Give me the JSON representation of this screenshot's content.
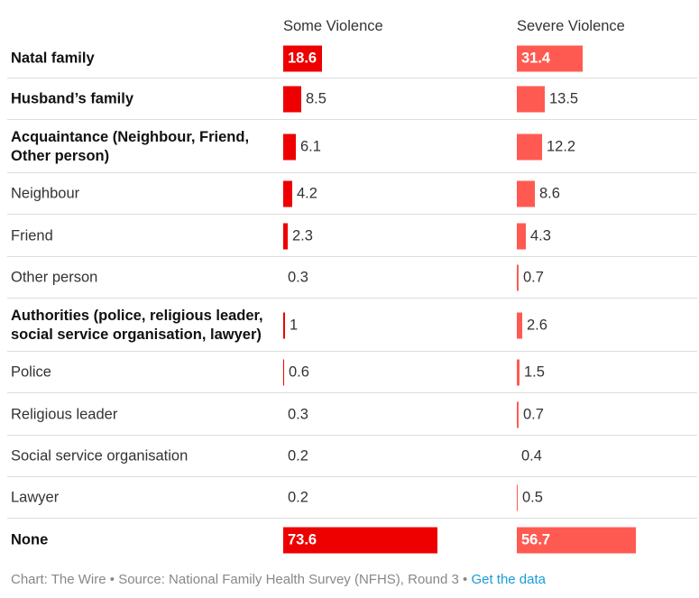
{
  "chart_data": {
    "type": "bar",
    "orientation": "horizontal",
    "columns": [
      "Some Violence",
      "Severe Violence"
    ],
    "colors": {
      "some": "#ee0000",
      "severe": "#ff5a52"
    },
    "rows": [
      {
        "label": "Natal family",
        "bold": true,
        "some": 18.6,
        "severe": 31.4
      },
      {
        "label": "Husband’s family",
        "bold": true,
        "some": 8.5,
        "severe": 13.5
      },
      {
        "label": "Acquaintance (Neighbour, Friend, Other person)",
        "bold": true,
        "some": 6.1,
        "severe": 12.2
      },
      {
        "label": "Neighbour",
        "bold": false,
        "some": 4.2,
        "severe": 8.6
      },
      {
        "label": "Friend",
        "bold": false,
        "some": 2.3,
        "severe": 4.3
      },
      {
        "label": "Other person",
        "bold": false,
        "some": 0.3,
        "severe": 0.7
      },
      {
        "label": "Authorities (police, religious leader, social service organisation, lawyer)",
        "bold": true,
        "some": 1,
        "severe": 2.6
      },
      {
        "label": "Police",
        "bold": false,
        "some": 0.6,
        "severe": 1.5
      },
      {
        "label": "Religious leader",
        "bold": false,
        "some": 0.3,
        "severe": 0.7
      },
      {
        "label": "Social service organisation",
        "bold": false,
        "some": 0.2,
        "severe": 0.4
      },
      {
        "label": "Lawyer",
        "bold": false,
        "some": 0.2,
        "severe": 0.5
      },
      {
        "label": "None",
        "bold": true,
        "some": 73.6,
        "severe": 56.7
      }
    ]
  },
  "footer": {
    "credit": "Chart: The Wire",
    "separator": " • ",
    "source": "Source: National Family Health Survey (NFHS), Round 3",
    "link": "Get the data"
  }
}
